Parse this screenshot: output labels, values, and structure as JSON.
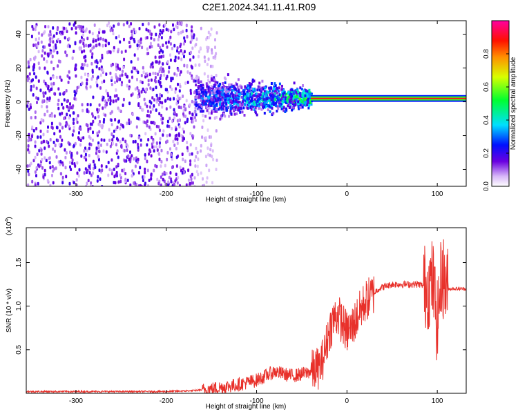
{
  "title": "C2E1.2024.341.11.41.R09",
  "chart_data": [
    {
      "type": "heatmap",
      "xlabel": "Height of straight line (km)",
      "ylabel": "Frequency (Hz)",
      "xlim": [
        -355,
        132
      ],
      "ylim": [
        -50,
        48
      ],
      "x_ticks": [
        -300,
        -200,
        -100,
        0,
        100
      ],
      "x_tick_labels": [
        "-300",
        "-200",
        "-100",
        "0",
        "100"
      ],
      "y_ticks": [
        -40,
        -20,
        0,
        20,
        40
      ],
      "y_tick_labels": [
        "-40",
        "-20",
        "0",
        "20",
        "40"
      ],
      "colorbar": {
        "label": "Normalized spectral amplitude",
        "range": [
          0,
          1
        ],
        "ticks": [
          0.0,
          0.2,
          0.4,
          0.6,
          0.8
        ],
        "tick_labels": [
          "0.0",
          "0.2",
          "0.4",
          "0.6",
          "0.8"
        ]
      },
      "regions": [
        {
          "x_range": [
            -355,
            -170
          ],
          "freq_range": [
            -50,
            48
          ],
          "amplitude": 0.1,
          "pattern": "broadband noise"
        },
        {
          "x_range": [
            -170,
            -40
          ],
          "freq_center": 3,
          "freq_halfwidth_range": [
            18,
            8
          ],
          "amplitude": 0.25,
          "pattern": "converging"
        },
        {
          "x_range": [
            -40,
            132
          ],
          "freq_center": 2,
          "freq_halfwidth": 2,
          "amplitude": 0.9,
          "pattern": "narrow carrier"
        }
      ]
    },
    {
      "type": "line",
      "xlabel": "Height of straight line (km)",
      "ylabel": "SNR (10 * v/v)",
      "y_multiplier": "(x10",
      "y_multiplier_exp": "4",
      "y_multiplier_close": ")",
      "xlim": [
        -355,
        132
      ],
      "ylim": [
        0,
        1.9
      ],
      "x_ticks": [
        -300,
        -200,
        -100,
        0,
        100
      ],
      "x_tick_labels": [
        "-300",
        "-200",
        "-100",
        "0",
        "100"
      ],
      "y_ticks": [
        0.5,
        1.0,
        1.5
      ],
      "y_tick_labels": [
        "0.5",
        "1.0",
        "1.5"
      ],
      "series": [
        {
          "color": "#e8302a",
          "x": [
            -355,
            -300,
            -250,
            -200,
            -170,
            -150,
            -120,
            -100,
            -90,
            -80,
            -70,
            -60,
            -50,
            -40,
            -30,
            -25,
            -20,
            -15,
            -10,
            -5,
            0,
            5,
            10,
            15,
            20,
            25,
            30,
            35,
            40,
            50,
            60,
            70,
            80,
            90,
            95,
            100,
            105,
            110,
            120,
            132
          ],
          "y": [
            0.02,
            0.02,
            0.02,
            0.02,
            0.03,
            0.05,
            0.1,
            0.15,
            0.2,
            0.25,
            0.22,
            0.2,
            0.22,
            0.25,
            0.3,
            0.45,
            0.7,
            0.85,
            0.9,
            0.8,
            0.7,
            0.75,
            0.85,
            0.95,
            1.05,
            1.1,
            1.15,
            1.2,
            1.22,
            1.25,
            1.25,
            1.25,
            1.25,
            1.22,
            1.3,
            0.8,
            1.4,
            1.2,
            1.2,
            1.2
          ]
        }
      ]
    }
  ]
}
